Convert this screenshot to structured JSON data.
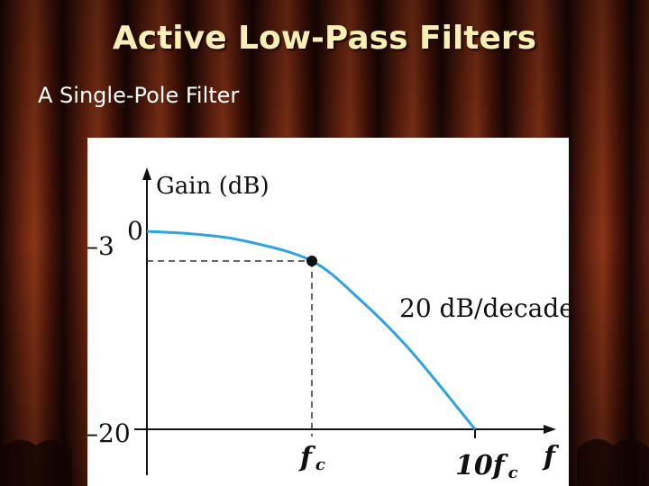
{
  "slide": {
    "title": "Active Low-Pass Filters",
    "subtitle": "A Single-Pole Filter"
  },
  "colors": {
    "title": "#f7efb3",
    "curve": "#2ea3df",
    "figure_bg": "#ffffff"
  },
  "chart_data": {
    "type": "line",
    "ylabel": "Gain (dB)",
    "xlabel": "f",
    "y_ticks": [
      {
        "value": 0,
        "label": "0"
      },
      {
        "value": -3,
        "label": "–3"
      },
      {
        "value": -20,
        "label": "–20"
      }
    ],
    "x_ticks": [
      {
        "value": 1,
        "label_base": "f",
        "label_sub": "c"
      },
      {
        "value": 10,
        "label_base": "10f",
        "label_sub": "c"
      }
    ],
    "ylim": [
      -20,
      0
    ],
    "series": [
      {
        "values": [
          [
            0.0,
            0
          ],
          [
            0.3,
            -0.3
          ],
          [
            0.6,
            -1.0
          ],
          [
            1,
            -3
          ],
          [
            2,
            -7
          ],
          [
            4,
            -12
          ],
          [
            10,
            -20
          ]
        ]
      }
    ],
    "marker": {
      "x": 1,
      "y": -3
    },
    "annotation": "20 dB/decade",
    "grid": false
  }
}
